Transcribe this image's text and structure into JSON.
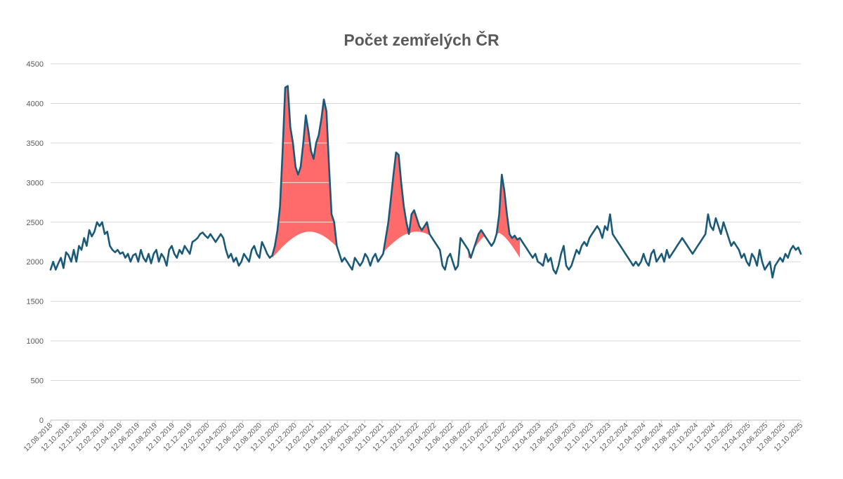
{
  "colors": {
    "line": "#1a5a78",
    "fill": "#ff6b6b",
    "grid": "#d9d9d9",
    "text": "#595959"
  },
  "chart_data": {
    "type": "line",
    "title": "Počet zemřelých ČR",
    "xlabel": "",
    "ylabel": "",
    "ylim": [
      0,
      4500
    ],
    "yticks": [
      "0",
      "500",
      "1000",
      "1500",
      "2000",
      "2500",
      "3000",
      "3500",
      "4000",
      "4500"
    ],
    "grid": true,
    "legend": "none",
    "xticks": [
      "12.08.2018",
      "12.10.2018",
      "12.12.2018",
      "12.02.2019",
      "12.04.2019",
      "12.06.2019",
      "12.08.2019",
      "12.10.2019",
      "12.12.2019",
      "12.02.2020",
      "12.04.2020",
      "12.06.2020",
      "12.08.2020",
      "12.10.2020",
      "12.12.2020",
      "12.02.2021",
      "12.04.2021",
      "12.06.2021",
      "12.08.2021",
      "12.10.2021",
      "12.12.2021",
      "12.02.2022",
      "12.04.2022",
      "12.06.2022",
      "12.08.2022",
      "12.10.2022",
      "12.12.2022",
      "12.02.2023",
      "12.04.2023",
      "12.06.2023",
      "12.08.2023",
      "12.10.2023",
      "12.12.2023",
      "12.02.2024",
      "12.04.2024",
      "12.06.2024",
      "12.08.2024",
      "12.10.2024",
      "12.12.2024",
      "12.02.2025",
      "12.04.2025",
      "12.06.2025",
      "12.08.2025",
      "12.10.2025"
    ],
    "series": [
      {
        "values": [
          1900,
          2000,
          1900,
          1980,
          2050,
          1920,
          2120,
          2080,
          2000,
          2150,
          2000,
          2200,
          2150,
          2300,
          2200,
          2400,
          2320,
          2380,
          2500,
          2450,
          2500,
          2350,
          2380,
          2200,
          2150,
          2120,
          2150,
          2100,
          2120,
          2050,
          2100,
          2000,
          2080,
          2100,
          2000,
          2150,
          2050,
          2000,
          2100,
          1980,
          2100,
          2150,
          2000,
          2100,
          2050,
          1950,
          2150,
          2200,
          2100,
          2050,
          2150,
          2100,
          2200,
          2150,
          2100,
          2250,
          2270,
          2300,
          2350,
          2370,
          2330,
          2300,
          2350,
          2300,
          2250,
          2300,
          2350,
          2300,
          2150,
          2050,
          2100,
          2000,
          2050,
          1950,
          2000,
          2100,
          2050,
          2000,
          2150,
          2200,
          2100,
          2050,
          2250,
          2180,
          2100,
          2050,
          2080,
          2200,
          2400,
          2700,
          3400,
          4200,
          4220,
          3700,
          3500,
          3200,
          3100,
          3200,
          3500,
          3850,
          3650,
          3400,
          3300,
          3500,
          3600,
          3800,
          4050,
          3900,
          3200,
          2600,
          2500,
          2200,
          2100,
          2000,
          2050,
          2000,
          1950,
          1900,
          2050,
          2000,
          1950,
          2000,
          2100,
          2050,
          1950,
          2050,
          2100,
          2000,
          2050,
          2100,
          2300,
          2500,
          2800,
          3100,
          3380,
          3350,
          3000,
          2700,
          2500,
          2350,
          2600,
          2650,
          2550,
          2450,
          2400,
          2450,
          2500,
          2350,
          2300,
          2250,
          2200,
          2150,
          1950,
          1900,
          2050,
          2100,
          2000,
          1900,
          1950,
          2300,
          2250,
          2200,
          2150,
          2050,
          2150,
          2250,
          2350,
          2400,
          2350,
          2300,
          2250,
          2200,
          2250,
          2350,
          2600,
          3100,
          2900,
          2600,
          2350,
          2300,
          2330,
          2280,
          2300,
          2250,
          2200,
          2150,
          2100,
          2050,
          2100,
          2000,
          1980,
          1950,
          2100,
          2000,
          2050,
          1900,
          1850,
          1950,
          2100,
          2200,
          1950,
          1900,
          1950,
          2050,
          2150,
          2100,
          2200,
          2250,
          2200,
          2300,
          2350,
          2400,
          2450,
          2400,
          2300,
          2450,
          2400,
          2600,
          2350,
          2300,
          2250,
          2200,
          2150,
          2100,
          2050,
          2000,
          1950,
          2000,
          1950,
          2000,
          2100,
          2000,
          1950,
          2100,
          2150,
          2000,
          2050,
          2100,
          2000,
          2150,
          2050,
          2100,
          2150,
          2200,
          2250,
          2300,
          2250,
          2200,
          2150,
          2100,
          2150,
          2200,
          2250,
          2300,
          2350,
          2600,
          2450,
          2400,
          2550,
          2450,
          2350,
          2500,
          2400,
          2300,
          2200,
          2250,
          2200,
          2150,
          2050,
          2100,
          2000,
          1950,
          2100,
          2050,
          1950,
          2150,
          2000,
          1900,
          1950,
          2000,
          1800,
          1950,
          2000,
          2050,
          2000,
          2100,
          2050,
          2150,
          2200,
          2150,
          2180,
          2100
        ]
      }
    ]
  }
}
